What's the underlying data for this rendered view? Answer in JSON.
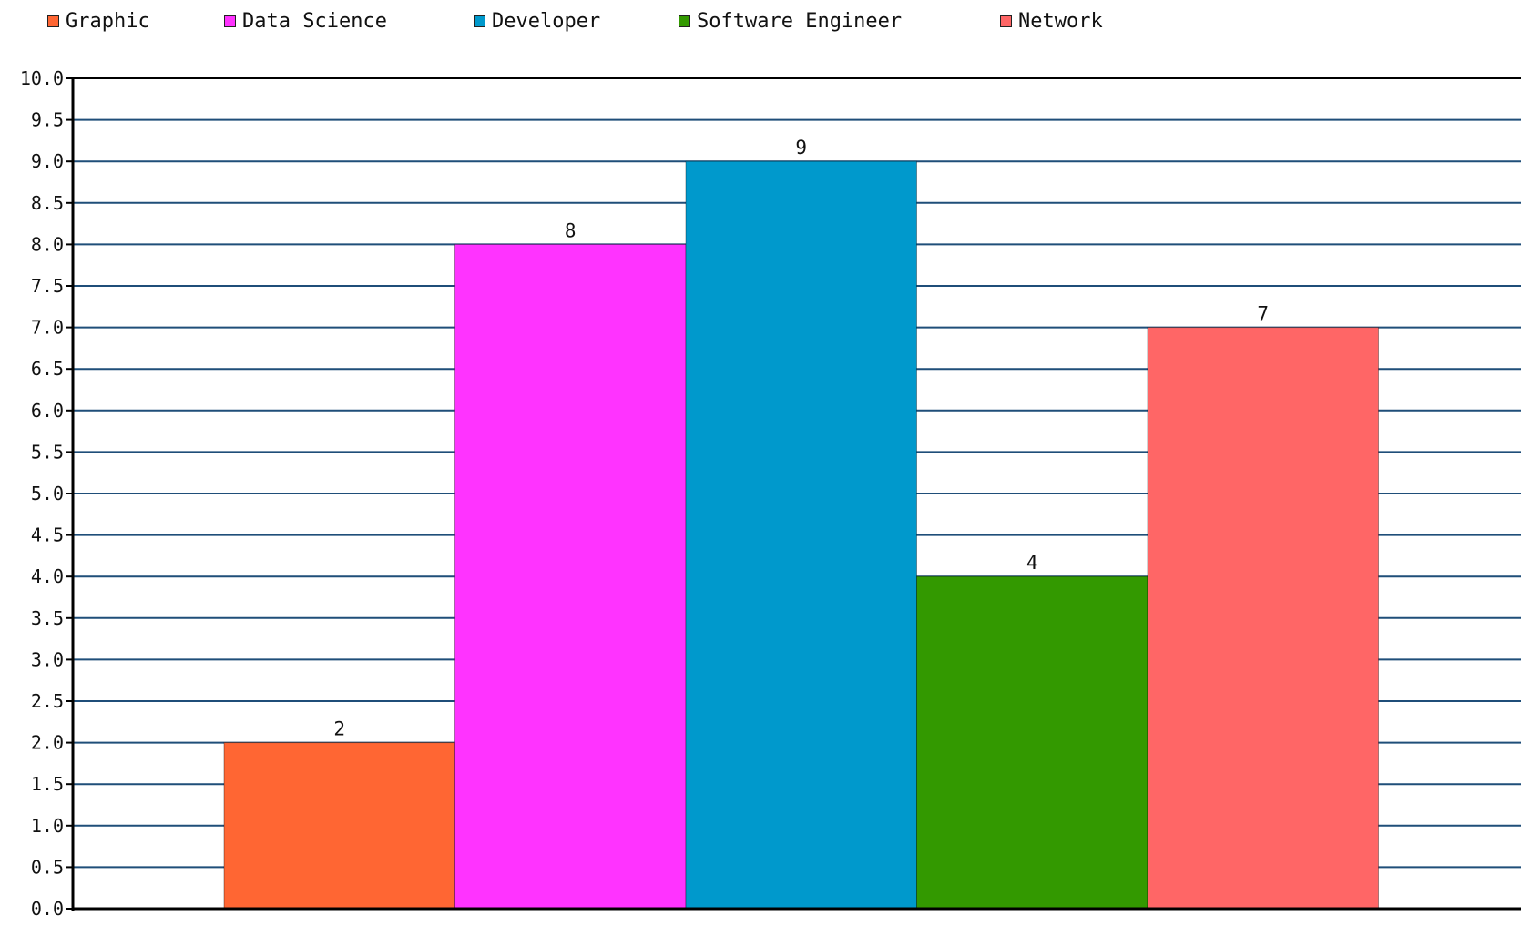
{
  "chart_data": {
    "type": "bar",
    "categories": [
      "Graphic",
      "Data Science",
      "Developer",
      "Software Engineer",
      "Network"
    ],
    "values": [
      2,
      8,
      9,
      4,
      7
    ],
    "colors": [
      "#ff6633",
      "#ff33ff",
      "#0099cc",
      "#339900",
      "#ff6666"
    ],
    "ylim": [
      0,
      10
    ],
    "ytick_step": 0.5,
    "ytick_labels": [
      "0.0",
      "0.5",
      "1.0",
      "1.5",
      "2.0",
      "2.5",
      "3.0",
      "3.5",
      "4.0",
      "4.5",
      "5.0",
      "5.5",
      "6.0",
      "6.5",
      "7.0",
      "7.5",
      "8.0",
      "8.5",
      "9.0",
      "9.5",
      "10.0"
    ],
    "data_labels": [
      "2",
      "8",
      "9",
      "4",
      "7"
    ],
    "grid": true,
    "gridline_color": "#1f4e79",
    "legend_position": "top-left"
  }
}
